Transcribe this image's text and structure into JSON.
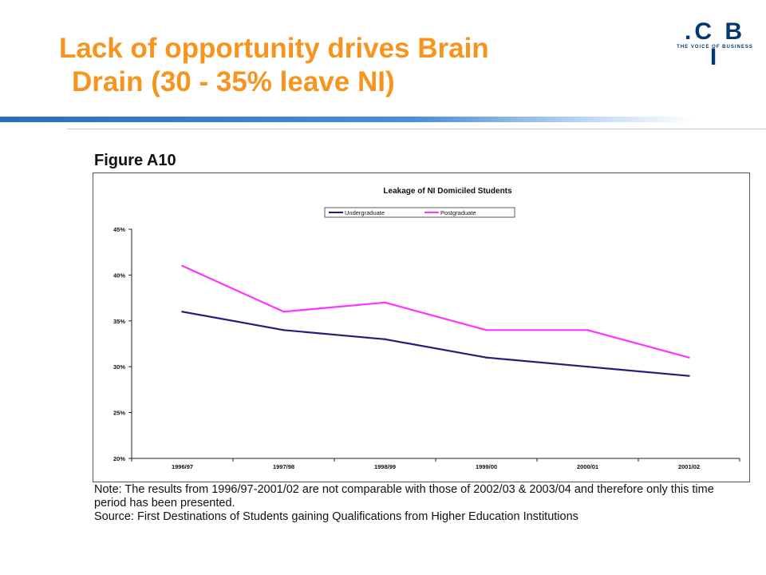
{
  "slide": {
    "title_line1": "Lack of opportunity drives Brain",
    "title_line2": "Drain (30 - 35% leave NI)"
  },
  "logo": {
    "wordmark": ".C B I",
    "tagline": "THE VOICE OF BUSINESS"
  },
  "figure": {
    "label": "Figure A10"
  },
  "notes": {
    "note": "Note: The results from 1996/97-2001/02 are not comparable with those of 2002/03 & 2003/04 and therefore only this time period has been presented.",
    "source": "Source: First Destinations of Students gaining Qualifications from Higher Education Institutions"
  },
  "colors": {
    "title": "#f7941d",
    "undergraduate": "#1f1f7a",
    "postgraduate": "#ff33ff"
  },
  "chart_data": {
    "type": "line",
    "title": "Leakage of NI Domiciled Students",
    "categories": [
      "1996/97",
      "1997/98",
      "1998/99",
      "1999/00",
      "2000/01",
      "2001/02"
    ],
    "series": [
      {
        "name": "Undergraduate",
        "values": [
          36,
          34,
          33,
          31,
          30,
          29
        ],
        "color": "#1f1f7a"
      },
      {
        "name": "Postgraduate",
        "values": [
          41,
          36,
          37,
          34,
          34,
          31
        ],
        "color": "#ff33ff"
      }
    ],
    "ylim": [
      20,
      45
    ],
    "yticks": [
      20,
      25,
      30,
      35,
      40,
      45
    ],
    "ytick_labels": [
      "20%",
      "25%",
      "30%",
      "35%",
      "40%",
      "45%"
    ],
    "legend_position": "top-center",
    "grid": false
  }
}
